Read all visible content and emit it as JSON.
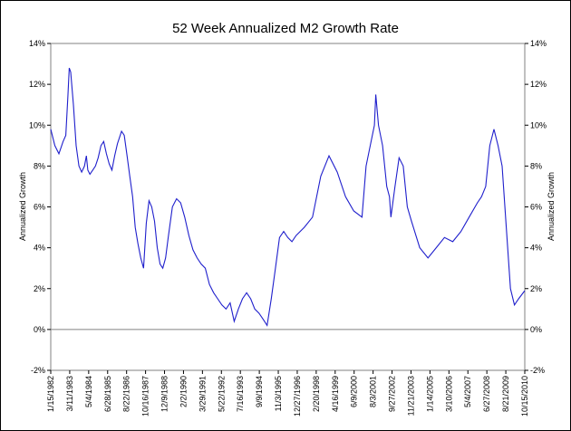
{
  "chart_data": {
    "type": "line",
    "title": "52 Week Annualized M2 Growth Rate",
    "ylabel": "Annualized Growth",
    "ylabel_right": "Annualized Growth",
    "ylim": [
      -2,
      14
    ],
    "yticks": [
      -2,
      0,
      2,
      4,
      6,
      8,
      10,
      12,
      14
    ],
    "ytick_labels": [
      "-2%",
      "0%",
      "2%",
      "4%",
      "6%",
      "8%",
      "10%",
      "12%",
      "14%"
    ],
    "grid": false,
    "reference_line_y": 0,
    "x_range": [
      "1/15/1982",
      "10/15/2010"
    ],
    "x_tick_labels": [
      "1/15/1982",
      "3/11/1983",
      "5/4/1984",
      "6/28/1985",
      "8/22/1986",
      "10/16/1987",
      "12/9/1988",
      "2/2/1990",
      "3/29/1991",
      "5/22/1992",
      "7/16/1993",
      "9/9/1994",
      "11/3/1995",
      "12/27/1996",
      "2/20/1998",
      "4/16/1999",
      "6/9/2000",
      "8/3/2001",
      "9/27/2002",
      "11/21/2003",
      "1/14/2005",
      "3/10/2006",
      "5/4/2007",
      "6/27/2008",
      "8/21/2009",
      "10/15/2010"
    ],
    "line_color": "#1f1fcc",
    "series": [
      {
        "x": [
          "1/15/1982",
          "4/15/1982",
          "7/15/1982",
          "10/15/1982",
          "12/15/1982",
          "2/1/1983",
          "3/1/1983",
          "4/1/1983",
          "6/1/1983",
          "8/1/1983",
          "10/1/1983",
          "12/1/1983",
          "2/1/1984",
          "3/15/1984",
          "4/15/1984",
          "6/1/1984",
          "8/1/1984",
          "10/1/1984",
          "12/1/1984",
          "2/1/1985",
          "4/1/1985",
          "6/1/1985",
          "8/1/1985",
          "10/1/1985",
          "12/1/1985",
          "2/1/1986",
          "5/1/1986",
          "7/1/1986",
          "9/1/1986",
          "11/1/1986",
          "1/1/1987",
          "3/1/1987",
          "5/1/1987",
          "7/1/1987",
          "9/1/1987",
          "11/1/1987",
          "1/1/1988",
          "3/1/1988",
          "5/1/1988",
          "7/1/1988",
          "9/1/1988",
          "11/1/1988",
          "1/1/1989",
          "3/1/1989",
          "6/1/1989",
          "9/1/1989",
          "12/1/1989",
          "3/1/1990",
          "6/1/1990",
          "9/1/1990",
          "12/1/1990",
          "3/1/1991",
          "6/1/1991",
          "9/1/1991",
          "12/1/1991",
          "3/1/1992",
          "6/1/1992",
          "9/1/1992",
          "12/1/1992",
          "3/1/1993",
          "6/1/1993",
          "9/1/1993",
          "12/1/1993",
          "3/1/1994",
          "6/1/1994",
          "9/1/1994",
          "12/1/1994",
          "3/1/1995",
          "6/1/1995",
          "9/1/1995",
          "12/1/1995",
          "3/1/1996",
          "6/1/1996",
          "9/1/1996",
          "12/1/1996",
          "6/1/1997",
          "12/1/1997",
          "6/1/1998",
          "12/1/1998",
          "6/1/1999",
          "12/1/1999",
          "6/1/2000",
          "12/1/2000",
          "3/1/2001",
          "6/1/2001",
          "9/1/2001",
          "10/1/2001",
          "12/1/2001",
          "3/1/2002",
          "6/1/2002",
          "8/1/2002",
          "9/1/2002",
          "12/1/2002",
          "3/1/2003",
          "6/1/2003",
          "9/1/2003",
          "12/1/2003",
          "6/1/2004",
          "12/1/2004",
          "6/1/2005",
          "12/1/2005",
          "6/1/2006",
          "12/1/2006",
          "6/1/2007",
          "12/1/2007",
          "3/1/2008",
          "6/1/2008",
          "9/1/2008",
          "12/1/2008",
          "3/1/2009",
          "6/1/2009",
          "9/1/2009",
          "12/1/2009",
          "3/1/2010",
          "6/1/2010",
          "10/15/2010"
        ],
        "values": [
          9.8,
          9.0,
          8.6,
          9.2,
          9.5,
          11.5,
          12.8,
          12.6,
          11.0,
          9.0,
          8.0,
          7.7,
          8.0,
          8.5,
          7.8,
          7.6,
          7.8,
          8.0,
          8.4,
          9.0,
          9.2,
          8.6,
          8.1,
          7.8,
          8.5,
          9.1,
          9.7,
          9.5,
          8.5,
          7.5,
          6.5,
          5.0,
          4.2,
          3.5,
          3.0,
          5.2,
          6.3,
          6.0,
          5.3,
          4.0,
          3.2,
          3.0,
          3.5,
          4.5,
          6.0,
          6.4,
          6.2,
          5.5,
          4.6,
          3.9,
          3.5,
          3.2,
          3.0,
          2.2,
          1.8,
          1.5,
          1.2,
          1.0,
          1.3,
          0.4,
          1.0,
          1.5,
          1.8,
          1.5,
          1.0,
          0.8,
          0.5,
          0.2,
          1.5,
          3.0,
          4.5,
          4.8,
          4.5,
          4.3,
          4.6,
          5.0,
          5.5,
          7.5,
          8.5,
          7.7,
          6.5,
          5.8,
          5.5,
          8.0,
          9.0,
          10.0,
          11.5,
          10.0,
          9.0,
          7.0,
          6.5,
          5.5,
          7.0,
          8.4,
          8.0,
          6.0,
          5.3,
          4.0,
          3.5,
          4.0,
          4.5,
          4.3,
          4.8,
          5.5,
          6.2,
          6.5,
          7.0,
          9.0,
          9.8,
          9.0,
          8.0,
          5.0,
          2.0,
          1.2,
          1.5,
          1.9
        ]
      }
    ]
  }
}
